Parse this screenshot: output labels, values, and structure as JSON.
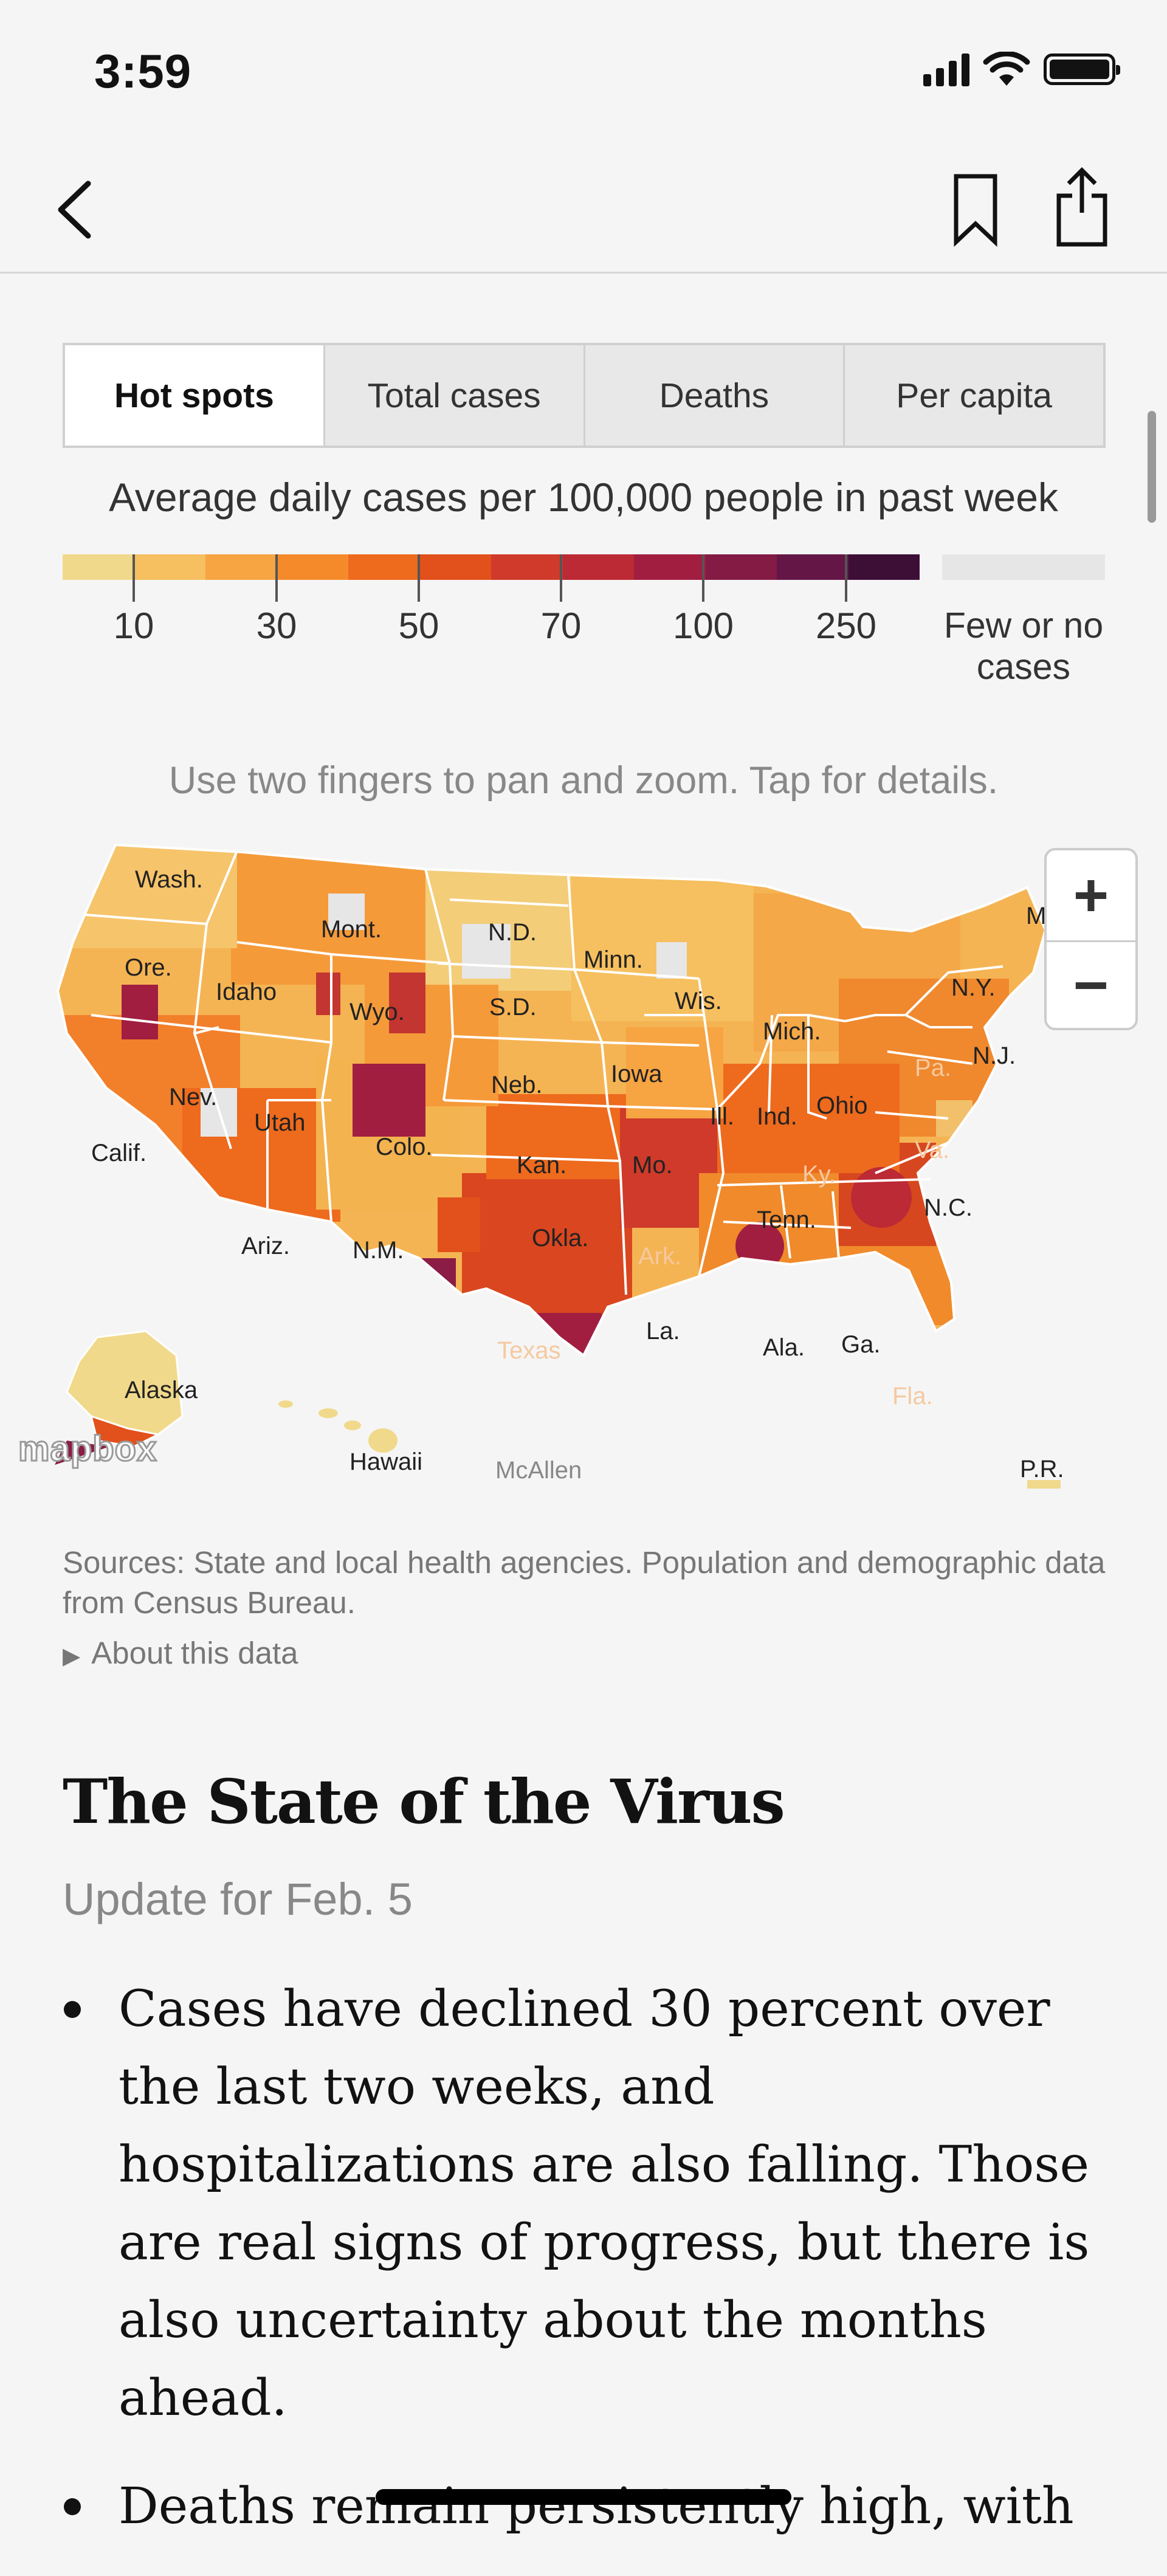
{
  "status_bar": {
    "time": "3:59"
  },
  "tabs": [
    {
      "label": "Hot spots",
      "active": true
    },
    {
      "label": "Total cases",
      "active": false
    },
    {
      "label": "Deaths",
      "active": false
    },
    {
      "label": "Per capita",
      "active": false
    }
  ],
  "legend": {
    "title": "Average daily cases per 100,000 people in past week",
    "ticks": [
      "10",
      "30",
      "50",
      "70",
      "100",
      "250"
    ],
    "none_label": "Few or no cases",
    "colors": [
      "#f1d98b",
      "#f6bf5f",
      "#f7a442",
      "#f58a2b",
      "#ee6a1d",
      "#e2501b",
      "#d03a2a",
      "#bc2a35",
      "#a11e40",
      "#831b45",
      "#641646",
      "#3e0f36"
    ]
  },
  "map": {
    "hint": "Use two fingers to pan and zoom. Tap for details.",
    "zoom_in": "+",
    "zoom_out": "−",
    "attribution": "mapbox",
    "labels": {
      "wash": "Wash.",
      "ore": "Ore.",
      "idaho": "Idaho",
      "mont": "Mont.",
      "nd": "N.D.",
      "minn": "Minn.",
      "sd": "S.D.",
      "wyo": "Wyo.",
      "wis": "Wis.",
      "mich": "Mich.",
      "ny": "N.Y.",
      "neb": "Neb.",
      "iowa": "Iowa",
      "nev": "Nev.",
      "utah": "Utah",
      "colo": "Colo.",
      "ill": "Ill.",
      "ind": "Ind.",
      "ohio": "Ohio",
      "pa": "Pa.",
      "nj": "N.J.",
      "calif": "Calif.",
      "kan": "Kan.",
      "mo": "Mo.",
      "ky": "Ky.",
      "va": "Va.",
      "nc": "N.C.",
      "tenn": "Tenn.",
      "okla": "Okla.",
      "ark": "Ark.",
      "ariz": "Ariz.",
      "nm": "N.M.",
      "ala": "Ala.",
      "ga": "Ga.",
      "la": "La.",
      "texas": "Texas",
      "fla": "Fla.",
      "alaska": "Alaska",
      "hawaii": "Hawaii",
      "mcallen": "McAllen",
      "pr": "P.R.",
      "me": "M"
    }
  },
  "sources": "Sources: State and local health agencies. Population and demographic data from Census Bureau.",
  "about": "About this data",
  "article": {
    "title": "The State of the Virus",
    "update": "Update for Feb. 5",
    "bullets": [
      "Cases have declined 30 percent over the last two weeks, and hospitalizations are also falling. Those are real signs of progress, but there is also uncertainty about the months ahead.",
      "Deaths remain persistently high, with"
    ]
  }
}
